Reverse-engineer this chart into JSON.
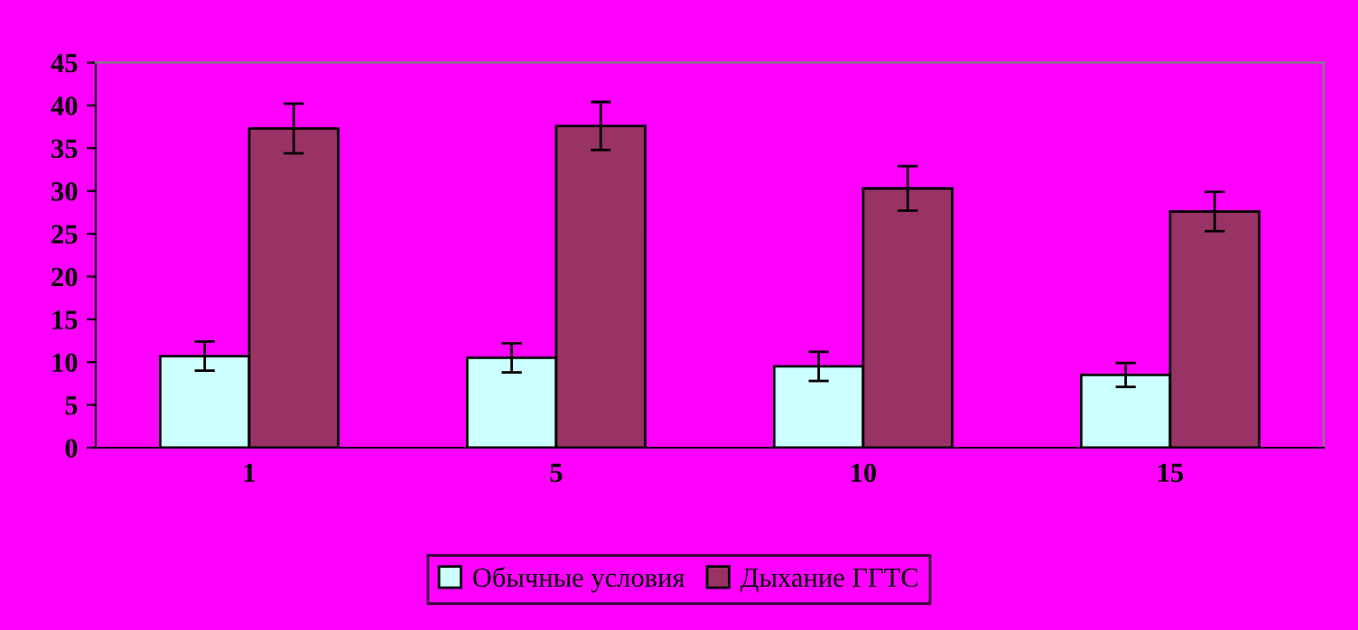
{
  "chart_data": {
    "type": "bar",
    "categories": [
      "1",
      "5",
      "10",
      "15"
    ],
    "series": [
      {
        "name": "Обычные условия",
        "color": "#ccffff",
        "values": [
          10.7,
          10.5,
          9.5,
          8.5
        ],
        "errors": [
          1.7,
          1.7,
          1.7,
          1.4
        ]
      },
      {
        "name": "Дыхание ГГТС",
        "color": "#993366",
        "values": [
          37.3,
          37.6,
          30.3,
          27.6
        ],
        "errors": [
          2.9,
          2.8,
          2.6,
          2.3
        ]
      }
    ],
    "ylim": [
      0,
      45
    ],
    "yticks": [
      0,
      5,
      10,
      15,
      20,
      25,
      30,
      35,
      40,
      45
    ],
    "grid": false,
    "legend": "bottom"
  }
}
